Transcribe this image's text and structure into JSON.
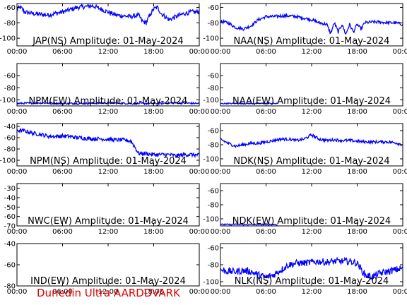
{
  "footer": "Dunedin Ultra AARDDVARK",
  "colors": {
    "trace": "#0000ff",
    "axes": "#000000",
    "footer": "#e00000",
    "background": "#ffffff"
  },
  "chart_data": [
    {
      "type": "line",
      "title": "JAP(NS) Amplitude: 01-May-2024",
      "xticks": [
        "00:00",
        "06:00",
        "12:00",
        "18:00",
        "00:00"
      ],
      "yticks": [
        "-100",
        "-80",
        "-60"
      ],
      "ylim": [
        -110,
        -55
      ],
      "series": [
        {
          "x": [
            0,
            0.5,
            1,
            2,
            3,
            4,
            5,
            6,
            7,
            8,
            9,
            10,
            11,
            12,
            13,
            14,
            15,
            16,
            16.5,
            17,
            17.5,
            18,
            18.5,
            19,
            20,
            21,
            22,
            23,
            24
          ],
          "y": [
            -62,
            -60,
            -66,
            -68,
            -69,
            -70,
            -68,
            -66,
            -63,
            -60,
            -59,
            -58,
            -62,
            -66,
            -70,
            -71,
            -72,
            -70,
            -78,
            -80,
            -70,
            -62,
            -60,
            -68,
            -76,
            -72,
            -68,
            -66,
            -66
          ],
          "noise": 6
        }
      ]
    },
    {
      "type": "line",
      "title": "NAA(NS) Amplitude: 01-May-2024",
      "xticks": [
        "00:00",
        "06:00",
        "12:00",
        "18:00",
        "00:00"
      ],
      "yticks": [
        "-100",
        "-80",
        "-60"
      ],
      "ylim": [
        -110,
        -55
      ],
      "series": [
        {
          "x": [
            0,
            1,
            2,
            3,
            4,
            5,
            6,
            7,
            8,
            9,
            10,
            11,
            12,
            13,
            14,
            14.5,
            15,
            15.5,
            16,
            16.5,
            17,
            17.5,
            18,
            18.5,
            19,
            20,
            21,
            22,
            23,
            24
          ],
          "y": [
            -78,
            -80,
            -86,
            -88,
            -84,
            -76,
            -72,
            -72,
            -71,
            -71,
            -72,
            -74,
            -76,
            -80,
            -82,
            -94,
            -80,
            -92,
            -82,
            -95,
            -82,
            -92,
            -82,
            -88,
            -80,
            -79,
            -79,
            -80,
            -80,
            -82
          ],
          "noise": 4
        }
      ]
    },
    {
      "type": "line",
      "title": "NPM(EW) Amplitude: 01-May-2024",
      "xticks": [
        "00:00",
        "06:00",
        "12:00",
        "18:00",
        "00:00"
      ],
      "yticks": [
        "-100",
        "-80",
        "-60"
      ],
      "ylim": [
        -110,
        -40
      ],
      "series": [
        {
          "x": [
            0,
            3,
            6,
            9,
            12,
            15,
            18,
            21,
            24
          ],
          "y": [
            -106,
            -105,
            -106,
            -106,
            -105,
            -106,
            -106,
            -105,
            -106
          ],
          "noise": 3
        }
      ]
    },
    {
      "type": "line",
      "title": "NAA(EW) Amplitude: 01-May-2024",
      "xticks": [
        "00:00",
        "06:00",
        "12:00",
        "18:00",
        "00:00"
      ],
      "yticks": [
        "-100",
        "-80",
        "-60"
      ],
      "ylim": [
        -110,
        -40
      ],
      "series": [
        {
          "x": [
            0,
            2,
            4,
            6,
            7.5
          ],
          "y": [
            -106,
            -106,
            -106,
            -106,
            -106
          ],
          "noise": 2
        }
      ]
    },
    {
      "type": "line",
      "title": "NPM(NS) Amplitude: 01-May-2024",
      "xticks": [
        "00:00",
        "06:00",
        "12:00",
        "18:00",
        "00:00"
      ],
      "yticks": [
        "-100",
        "-80",
        "-60",
        "-40"
      ],
      "ylim": [
        -110,
        -35
      ],
      "series": [
        {
          "x": [
            0,
            1,
            2,
            3,
            4,
            5,
            6,
            7,
            8,
            9,
            10,
            11,
            12,
            13,
            14,
            15,
            15.5,
            16,
            17,
            18,
            19,
            20,
            21,
            22,
            23,
            24
          ],
          "y": [
            -47,
            -48,
            -52,
            -54,
            -57,
            -58,
            -57,
            -58,
            -60,
            -61,
            -62,
            -62,
            -63,
            -64,
            -64,
            -66,
            -76,
            -88,
            -88,
            -90,
            -90,
            -90,
            -92,
            -90,
            -90,
            -91
          ],
          "noise": 7
        }
      ]
    },
    {
      "type": "line",
      "title": "NDK(NS) Amplitude: 01-May-2024",
      "xticks": [
        "00:00",
        "06:00",
        "12:00",
        "18:00",
        "00:00"
      ],
      "yticks": [
        "-100",
        "-80",
        "-60"
      ],
      "ylim": [
        -110,
        -50
      ],
      "series": [
        {
          "x": [
            0,
            1,
            2,
            3,
            4,
            5,
            6,
            7,
            8,
            9,
            10,
            11,
            12,
            13,
            14,
            15,
            16,
            17,
            18,
            19,
            20,
            21,
            22,
            23,
            24
          ],
          "y": [
            -72,
            -78,
            -82,
            -80,
            -78,
            -78,
            -76,
            -74,
            -72,
            -72,
            -74,
            -72,
            -66,
            -72,
            -74,
            -73,
            -74,
            -74,
            -75,
            -76,
            -76,
            -76,
            -76,
            -77,
            -80
          ],
          "noise": 4
        }
      ]
    },
    {
      "type": "line",
      "title": "NWC(EW) Amplitude: 01-May-2024",
      "xticks": [
        "00:00",
        "06:00",
        "12:00",
        "18:00",
        "00:00"
      ],
      "yticks": [
        "-70",
        "-60",
        "-50",
        "-40",
        "-30"
      ],
      "ylim": [
        -70,
        -25
      ],
      "series": []
    },
    {
      "type": "line",
      "title": "NDK(EW) Amplitude: 01-May-2024",
      "xticks": [
        "00:00",
        "06:00",
        "12:00",
        "18:00",
        "00:00"
      ],
      "yticks": [
        "-100",
        "-80",
        "-60"
      ],
      "ylim": [
        -110,
        -50
      ],
      "series": [
        {
          "x": [
            0,
            2,
            4,
            6,
            7.5
          ],
          "y": [
            -108,
            -108,
            -108,
            -108,
            -108
          ],
          "noise": 2
        }
      ]
    },
    {
      "type": "line",
      "title": "IND(EW) Amplitude: 01-May-2024",
      "xticks": [
        "00:00",
        "06:00",
        "12:00",
        "18:00",
        "00:00"
      ],
      "yticks": [
        "-80",
        "-60",
        "-40"
      ],
      "ylim": [
        -80,
        -40
      ],
      "series": []
    },
    {
      "type": "line",
      "title": "NLK(NS) Amplitude: 01-May-2024",
      "xticks": [
        "00:00",
        "06:00",
        "12:00",
        "18:00",
        "00:00"
      ],
      "yticks": [
        "-100",
        "-80",
        "-60"
      ],
      "ylim": [
        -105,
        -55
      ],
      "series": [
        {
          "x": [
            0,
            1,
            2,
            3,
            4,
            5,
            6,
            7,
            8,
            9,
            10,
            11,
            12,
            13,
            14,
            15,
            16,
            17,
            18,
            19,
            20,
            21,
            22,
            23,
            24
          ],
          "y": [
            -86,
            -88,
            -88,
            -87,
            -88,
            -92,
            -95,
            -92,
            -86,
            -80,
            -78,
            -78,
            -77,
            -76,
            -77,
            -76,
            -76,
            -76,
            -78,
            -92,
            -94,
            -90,
            -88,
            -86,
            -84
          ],
          "noise": 8
        }
      ]
    }
  ]
}
